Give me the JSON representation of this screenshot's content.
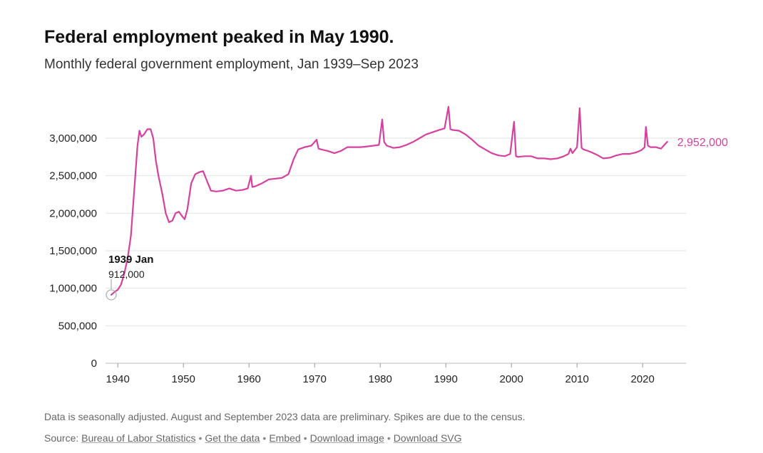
{
  "header": {
    "title": "Federal employment peaked in May 1990.",
    "subtitle": "Monthly federal government employment, Jan 1939–Sep 2023"
  },
  "footer": {
    "note": "Data is seasonally adjusted. August and September 2023 data are preliminary. Spikes are due to the census.",
    "source_label": "Source:",
    "links": [
      "Bureau of Labor Statistics",
      "Get the data",
      "Embed",
      "Download image",
      "Download SVG"
    ],
    "separator": "•"
  },
  "chart_data": {
    "type": "line",
    "title": "Federal employment peaked in May 1990.",
    "subtitle": "Monthly federal government employment, Jan 1939–Sep 2023",
    "xlabel": "",
    "ylabel": "",
    "xlim": [
      1939,
      2023.75
    ],
    "ylim": [
      0,
      3000000
    ],
    "x_ticks": [
      1940,
      1950,
      1960,
      1970,
      1980,
      1990,
      2000,
      2010,
      2020
    ],
    "y_ticks": [
      0,
      500000,
      1000000,
      1500000,
      2000000,
      2500000,
      3000000
    ],
    "y_tick_labels": [
      "0",
      "500,000",
      "1,000,000",
      "1,500,000",
      "2,000,000",
      "2,500,000",
      "3,000,000"
    ],
    "grid": "horizontal",
    "line_color": "#d6409f",
    "series": [
      {
        "points": [
          [
            1939.0,
            912000
          ],
          [
            1939.5,
            950000
          ],
          [
            1940.0,
            980000
          ],
          [
            1940.5,
            1050000
          ],
          [
            1941.0,
            1200000
          ],
          [
            1941.5,
            1400000
          ],
          [
            1942.0,
            1700000
          ],
          [
            1942.5,
            2300000
          ],
          [
            1943.0,
            2900000
          ],
          [
            1943.3,
            3100000
          ],
          [
            1943.6,
            3020000
          ],
          [
            1944.0,
            3050000
          ],
          [
            1944.5,
            3120000
          ],
          [
            1945.0,
            3120000
          ],
          [
            1945.4,
            3000000
          ],
          [
            1945.8,
            2700000
          ],
          [
            1946.2,
            2500000
          ],
          [
            1946.8,
            2250000
          ],
          [
            1947.3,
            2000000
          ],
          [
            1947.8,
            1880000
          ],
          [
            1948.3,
            1900000
          ],
          [
            1948.8,
            2000000
          ],
          [
            1949.3,
            2020000
          ],
          [
            1949.8,
            1960000
          ],
          [
            1950.2,
            1920000
          ],
          [
            1950.6,
            2050000
          ],
          [
            1951.2,
            2400000
          ],
          [
            1951.8,
            2520000
          ],
          [
            1952.5,
            2550000
          ],
          [
            1953.0,
            2560000
          ],
          [
            1953.5,
            2450000
          ],
          [
            1954.2,
            2300000
          ],
          [
            1955.0,
            2290000
          ],
          [
            1956.0,
            2300000
          ],
          [
            1957.0,
            2330000
          ],
          [
            1958.0,
            2300000
          ],
          [
            1959.0,
            2310000
          ],
          [
            1959.8,
            2330000
          ],
          [
            1960.3,
            2500000
          ],
          [
            1960.5,
            2350000
          ],
          [
            1961.0,
            2360000
          ],
          [
            1962.0,
            2400000
          ],
          [
            1963.0,
            2450000
          ],
          [
            1964.0,
            2460000
          ],
          [
            1965.0,
            2470000
          ],
          [
            1966.0,
            2520000
          ],
          [
            1966.8,
            2720000
          ],
          [
            1967.5,
            2850000
          ],
          [
            1968.5,
            2880000
          ],
          [
            1969.5,
            2900000
          ],
          [
            1970.3,
            2980000
          ],
          [
            1970.6,
            2860000
          ],
          [
            1971.0,
            2850000
          ],
          [
            1972.0,
            2830000
          ],
          [
            1973.0,
            2800000
          ],
          [
            1974.0,
            2830000
          ],
          [
            1975.0,
            2880000
          ],
          [
            1976.0,
            2880000
          ],
          [
            1977.0,
            2880000
          ],
          [
            1978.0,
            2890000
          ],
          [
            1979.0,
            2900000
          ],
          [
            1979.8,
            2910000
          ],
          [
            1980.3,
            3250000
          ],
          [
            1980.6,
            2950000
          ],
          [
            1981.0,
            2900000
          ],
          [
            1982.0,
            2870000
          ],
          [
            1983.0,
            2880000
          ],
          [
            1984.0,
            2910000
          ],
          [
            1985.0,
            2950000
          ],
          [
            1986.0,
            3000000
          ],
          [
            1987.0,
            3050000
          ],
          [
            1988.0,
            3080000
          ],
          [
            1989.0,
            3110000
          ],
          [
            1989.8,
            3130000
          ],
          [
            1990.4,
            3420000
          ],
          [
            1990.7,
            3120000
          ],
          [
            1991.0,
            3110000
          ],
          [
            1992.0,
            3100000
          ],
          [
            1993.0,
            3050000
          ],
          [
            1994.0,
            2980000
          ],
          [
            1995.0,
            2900000
          ],
          [
            1996.0,
            2850000
          ],
          [
            1997.0,
            2800000
          ],
          [
            1998.0,
            2770000
          ],
          [
            1999.0,
            2760000
          ],
          [
            1999.8,
            2790000
          ],
          [
            2000.4,
            3220000
          ],
          [
            2000.7,
            2760000
          ],
          [
            2001.0,
            2750000
          ],
          [
            2002.0,
            2760000
          ],
          [
            2003.0,
            2760000
          ],
          [
            2004.0,
            2730000
          ],
          [
            2005.0,
            2730000
          ],
          [
            2006.0,
            2720000
          ],
          [
            2007.0,
            2730000
          ],
          [
            2008.0,
            2760000
          ],
          [
            2008.7,
            2790000
          ],
          [
            2009.0,
            2860000
          ],
          [
            2009.3,
            2800000
          ],
          [
            2010.0,
            2880000
          ],
          [
            2010.4,
            3400000
          ],
          [
            2010.7,
            2870000
          ],
          [
            2011.0,
            2850000
          ],
          [
            2012.0,
            2820000
          ],
          [
            2013.0,
            2780000
          ],
          [
            2014.0,
            2730000
          ],
          [
            2015.0,
            2740000
          ],
          [
            2016.0,
            2770000
          ],
          [
            2017.0,
            2790000
          ],
          [
            2018.0,
            2790000
          ],
          [
            2019.0,
            2810000
          ],
          [
            2019.8,
            2840000
          ],
          [
            2020.3,
            2880000
          ],
          [
            2020.5,
            3150000
          ],
          [
            2020.8,
            2900000
          ],
          [
            2021.2,
            2880000
          ],
          [
            2022.0,
            2880000
          ],
          [
            2022.8,
            2860000
          ],
          [
            2023.3,
            2910000
          ],
          [
            2023.75,
            2952000
          ]
        ]
      }
    ],
    "annotations": [
      {
        "title": "1939 Jan",
        "value": "912,000",
        "x": 1939.0,
        "y": 912000
      }
    ],
    "end_label": {
      "value": "2,952,000",
      "x": 2023.75,
      "y": 2952000
    }
  }
}
